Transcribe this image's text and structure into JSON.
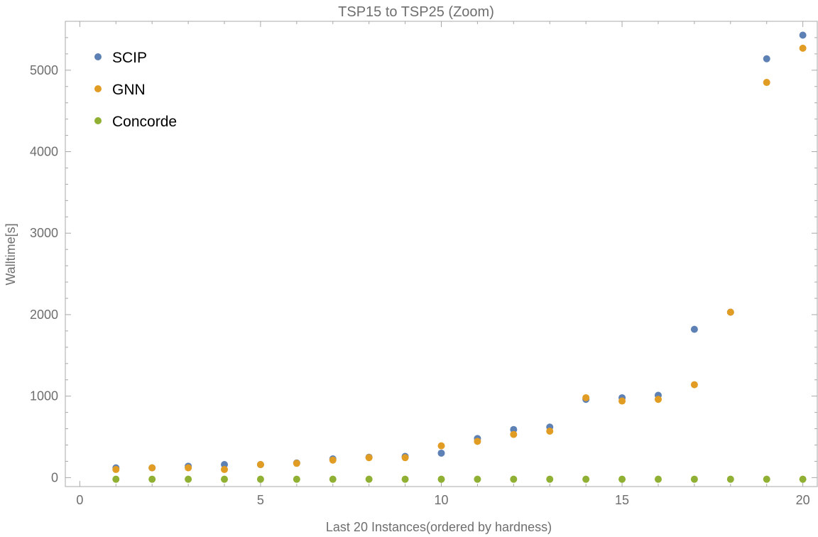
{
  "chart_data": {
    "type": "scatter",
    "title": "TSP15 to TSP25 (Zoom)",
    "xlabel": "Last 20 Instances(ordered by hardness)",
    "ylabel": "Walltime[s]",
    "xlim": [
      -0.4,
      20.4
    ],
    "ylim": [
      -110,
      5600
    ],
    "xticks": [
      0,
      5,
      10,
      15,
      20
    ],
    "yticks": [
      0,
      1000,
      2000,
      3000,
      4000,
      5000
    ],
    "legend_position": "top-left",
    "x": [
      1,
      2,
      3,
      4,
      5,
      6,
      7,
      8,
      9,
      10,
      11,
      12,
      13,
      14,
      15,
      16,
      17,
      18,
      19,
      20
    ],
    "series": [
      {
        "name": "SCIP",
        "color": "#5e81b5",
        "values": [
          120,
          120,
          140,
          160,
          160,
          180,
          230,
          250,
          260,
          300,
          480,
          590,
          620,
          960,
          980,
          1010,
          1820,
          2030,
          5140,
          5430
        ]
      },
      {
        "name": "GNN",
        "color": "#e19c24",
        "values": [
          100,
          120,
          120,
          100,
          160,
          175,
          215,
          245,
          245,
          390,
          445,
          530,
          570,
          980,
          940,
          960,
          1140,
          2030,
          4850,
          5270
        ]
      },
      {
        "name": "Concorde",
        "color": "#8fb032",
        "values": [
          -20,
          -20,
          -20,
          -20,
          -20,
          -20,
          -20,
          -20,
          -20,
          -20,
          -20,
          -20,
          -20,
          -20,
          -20,
          -20,
          -20,
          -20,
          -20,
          -20
        ]
      }
    ]
  }
}
